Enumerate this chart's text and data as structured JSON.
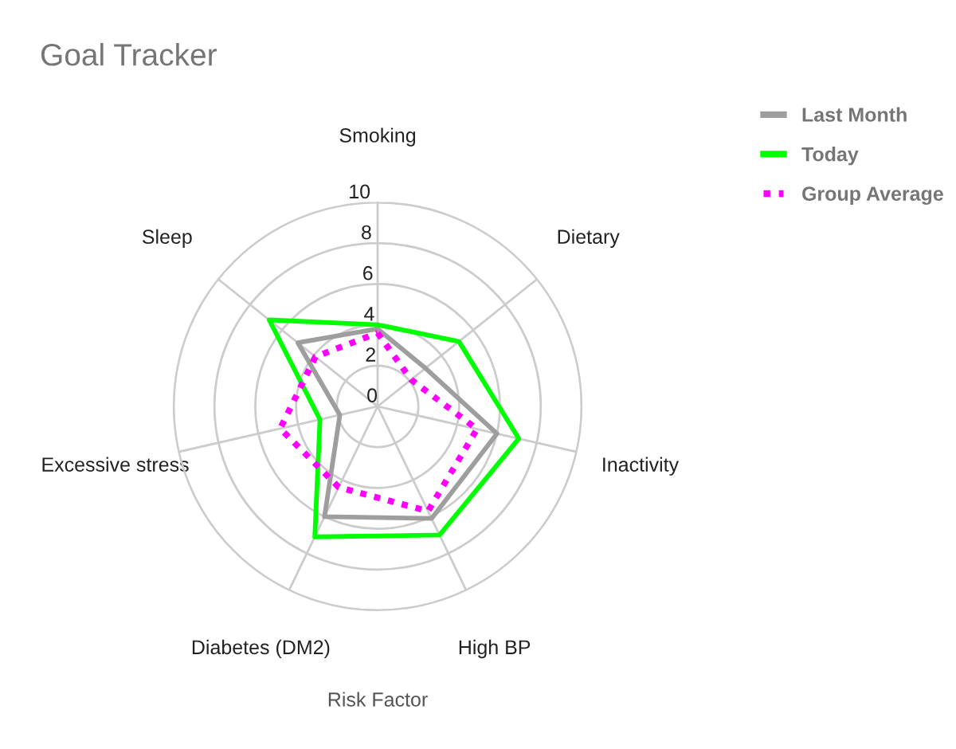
{
  "chart_data": {
    "type": "radar",
    "title": "Goal Tracker",
    "xlabel": "Risk Factor",
    "categories": [
      "Smoking",
      "Dietary",
      "Inactivity",
      "High BP",
      "Diabetes (DM2)",
      "Excessive stress",
      "Sleep"
    ],
    "series": [
      {
        "name": "Last Month",
        "color": "#9e9e9e",
        "values": [
          3.8,
          3.0,
          6.0,
          6.1,
          6.0,
          1.9,
          5.0
        ]
      },
      {
        "name": "Today",
        "color": "#00ff00",
        "values": [
          4.0,
          5.1,
          7.1,
          7.0,
          7.1,
          2.9,
          6.8
        ]
      },
      {
        "name": "Group Average",
        "color": "#ff00ff",
        "line_style": "dotted",
        "values": [
          3.6,
          2.1,
          5.0,
          5.7,
          4.4,
          4.9,
          3.9
        ]
      }
    ],
    "ylim": [
      0,
      10
    ],
    "yticks": [
      0,
      2,
      4,
      6,
      8,
      10
    ],
    "grid": true,
    "legend": "top right"
  }
}
